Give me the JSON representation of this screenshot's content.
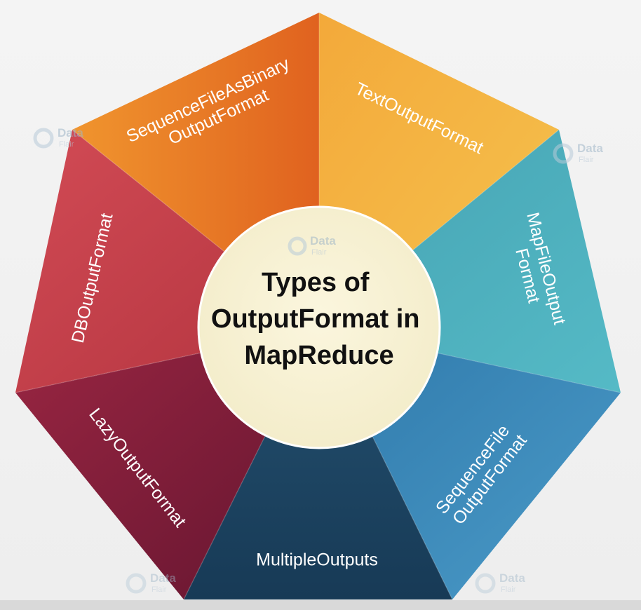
{
  "diagram": {
    "center_title_lines": [
      "Types of",
      "OutputFormat in",
      "MapReduce"
    ],
    "segments": [
      {
        "lines": [
          "TextOutputFormat"
        ],
        "color": "#f2b443"
      },
      {
        "lines": [
          "MapFileOutput",
          "Format"
        ],
        "color": "#48adbb"
      },
      {
        "lines": [
          "SequenceFile",
          "OutputFormat"
        ],
        "color": "#3a87b8"
      },
      {
        "lines": [
          "MultipleOutputs"
        ],
        "color": "#1f4766"
      },
      {
        "lines": [
          "LazyOutputFormat"
        ],
        "color": "#7e1c3a"
      },
      {
        "lines": [
          "DBOutputFormat"
        ],
        "color": "#c8414c"
      },
      {
        "lines": [
          "SequenceFileAsBinary",
          "OutputFormat"
        ],
        "color": "#e6782a"
      }
    ],
    "watermark": {
      "word1": "Data",
      "word2": "Flair"
    }
  }
}
